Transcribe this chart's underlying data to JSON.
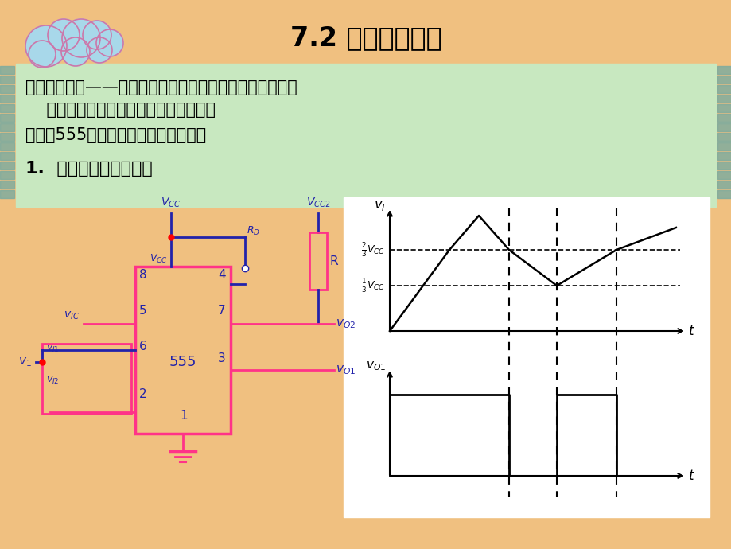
{
  "title": "7.2 施密特触发器",
  "bg_color": "#F0C080",
  "green_box_color": "#C8E8C0",
  "circuit_color": "#FF3388",
  "blue_color": "#2222AA",
  "waveform_bg": "#FFFFFF",
  "text_line1": "施密特触发器——具有回差电压特性，能将边沿变化缓慢的",
  "text_line2": "    电压波形整形为边沿陡峭的矩形脉冲。",
  "text_line3": "一．用555定时器构成的施密特触发器",
  "text_line4": "1.  电路组成及工作原理",
  "side_bar_color": "#7AABA0"
}
